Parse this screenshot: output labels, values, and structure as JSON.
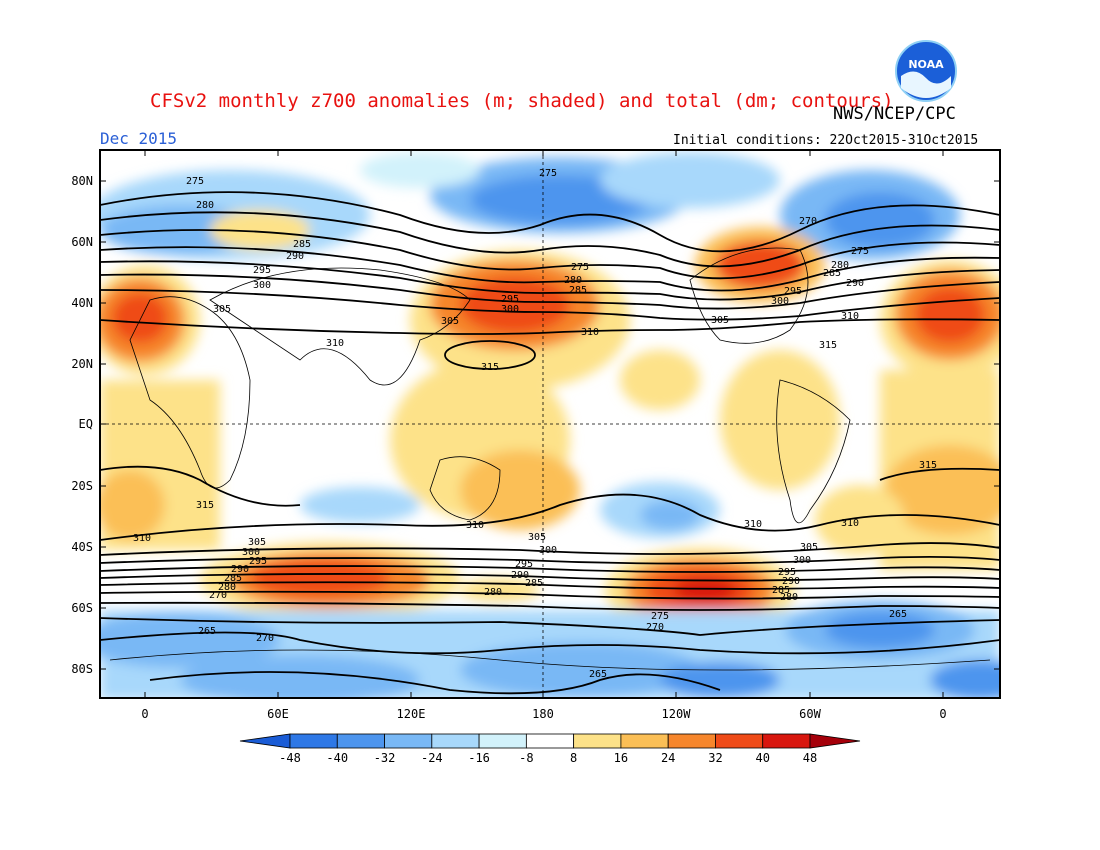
{
  "header": {
    "title": "CFSv2 monthly z700 anomalies (m; shaded) and total (dm; contours)",
    "org": "NWS/NCEP/CPC",
    "month": "Dec 2015",
    "initial_conditions": "Initial conditions: 22Oct2015-31Oct2015",
    "logo_text": "NOAA"
  },
  "map": {
    "lat_labels": [
      "80N",
      "60N",
      "40N",
      "20N",
      "EQ",
      "20S",
      "40S",
      "60S",
      "80S"
    ],
    "lon_labels": [
      "0",
      "60E",
      "120E",
      "180",
      "120W",
      "60W",
      "0"
    ],
    "contour_labels": [
      "275",
      "280",
      "285",
      "290",
      "295",
      "300",
      "305",
      "310",
      "315",
      "275",
      "280",
      "285",
      "290",
      "295",
      "300",
      "305",
      "310",
      "315",
      "265",
      "270",
      "270",
      "265",
      "270",
      "265",
      "270",
      "275",
      "280",
      "285",
      "290",
      "295",
      "300",
      "305",
      "310",
      "310",
      "310",
      "310",
      "315",
      "315",
      "305",
      "300",
      "295",
      "290",
      "285",
      "280",
      "275",
      "270",
      "265",
      "300",
      "305",
      "295",
      "290",
      "285",
      "280",
      "275",
      "270",
      "265"
    ]
  },
  "colorbar": {
    "ticks": [
      "-48",
      "-40",
      "-32",
      "-24",
      "-16",
      "-8",
      "8",
      "16",
      "24",
      "32",
      "40",
      "48"
    ],
    "colors": [
      "#1a5cd6",
      "#2e78e6",
      "#4d95ee",
      "#79b8f5",
      "#a8d8fb",
      "#d2f2fb",
      "#ffffff",
      "#fde289",
      "#fbbf56",
      "#f6862c",
      "#ef4b18",
      "#d8170f",
      "#a5000a"
    ]
  }
}
